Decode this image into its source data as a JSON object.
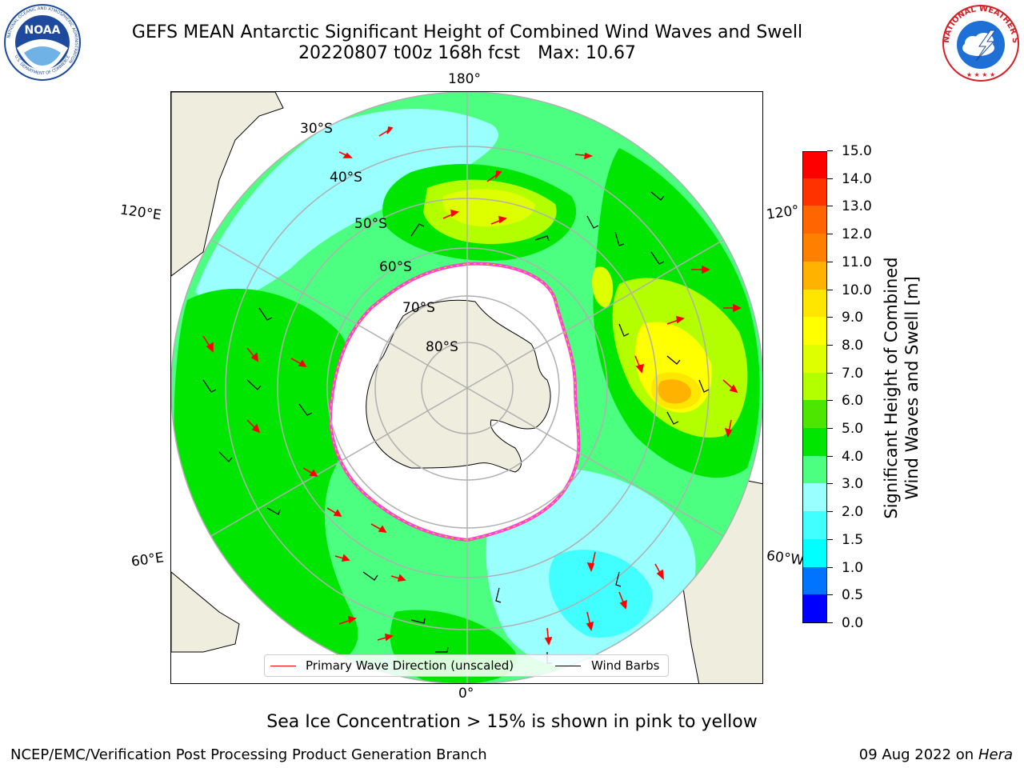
{
  "title": {
    "line1": "GEFS MEAN Antarctic Significant Height of Combined Wind Waves and Swell",
    "run": "20220807 t00z 168h fcst",
    "max_label": "Max: 10.67"
  },
  "logos": {
    "noaa_text": "NOAA",
    "noaa_ring": "NATIONAL OCEANIC AND ATMOSPHERIC ADMINISTRATION",
    "noaa_ring_bottom": "U.S. DEPARTMENT OF COMMERCE",
    "nws_ring": "NATIONAL WEATHER SERVICE"
  },
  "map": {
    "projection": "south polar stereographic",
    "lon_labels": {
      "top": "180°",
      "bottom": "0°",
      "upper_left": "120°E",
      "upper_right": "120°",
      "lower_left": "60°E",
      "lower_right": "60°W"
    },
    "lat_labels": [
      "30°S",
      "40°S",
      "50°S",
      "60°S",
      "70°S",
      "80°S"
    ],
    "colors": {
      "land": "#efedde",
      "ice": "#ffffff",
      "ice_edge": "#ff44cc",
      "ice_edge2": "#ffcc33"
    }
  },
  "legend": {
    "wave_label": "Primary Wave Direction (unscaled)",
    "barb_label": "Wind Barbs",
    "wave_color": "#ff0000",
    "barb_color": "#000000"
  },
  "colorbar": {
    "label_line1": "Significant Height of Combined",
    "label_line2": "Wind Waves and Swell [m]",
    "ticks": [
      "0.0",
      "0.5",
      "1.0",
      "1.5",
      "2.0",
      "3.0",
      "4.0",
      "5.0",
      "6.0",
      "7.0",
      "8.0",
      "9.0",
      "10.0",
      "11.0",
      "12.0",
      "13.0",
      "14.0",
      "15.0"
    ],
    "colors": [
      "#0000ff",
      "#0073ff",
      "#00ffff",
      "#42ffff",
      "#99ffff",
      "#4dff80",
      "#00e600",
      "#4de600",
      "#b3ff00",
      "#ddff00",
      "#ffff00",
      "#ffe600",
      "#ffb300",
      "#ff8000",
      "#ff6600",
      "#ff3300",
      "#ff0000"
    ]
  },
  "chart_data": {
    "type": "heatmap",
    "variable": "Significant Height of Combined Wind Waves and Swell",
    "units": "m",
    "max_value": 10.67,
    "scale_range": [
      0,
      15
    ]
  },
  "notes": {
    "ice": "Sea Ice Concentration > 15% is shown in pink to yellow"
  },
  "footer": {
    "left": "NCEP/EMC/Verification Post Processing Product Generation Branch",
    "right_date": "09 Aug 2022 on",
    "right_host": "Hera"
  }
}
